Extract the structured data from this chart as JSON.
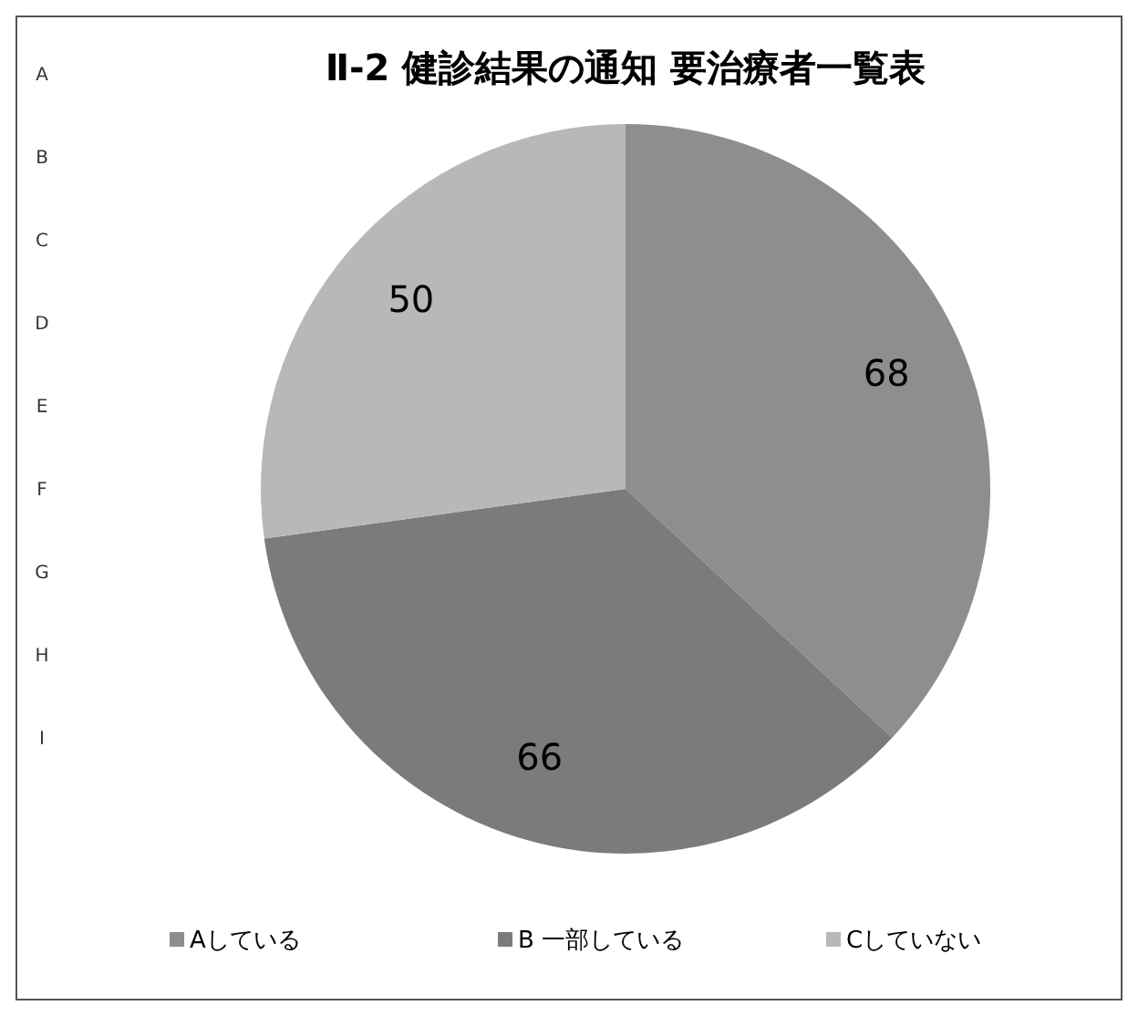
{
  "chart_data": {
    "type": "pie",
    "title": "Ⅱ-2 健診結果の通知 要治療者一覧表",
    "categories": [
      "Aしている",
      "B 一部している",
      "Cしていない"
    ],
    "values": [
      68,
      66,
      50
    ],
    "colors": [
      "#8e8e8e",
      "#7b7b7b",
      "#b8b8b8"
    ],
    "data_labels": true,
    "legend": "bottom",
    "annotations": [
      "A",
      "B",
      "C",
      "D",
      "E",
      "F",
      "G",
      "H",
      "I"
    ]
  }
}
